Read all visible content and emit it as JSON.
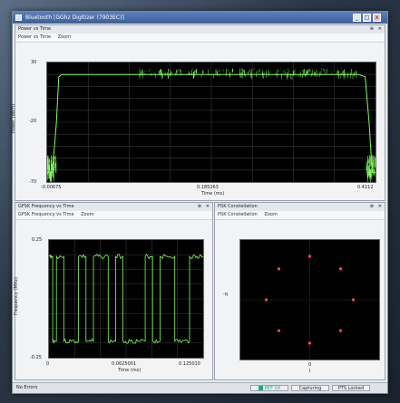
{
  "window": {
    "title": "Bluetooth [GGhz Digitizer (7903EC)]",
    "min": "_",
    "max": "□",
    "close": "x"
  },
  "power_panel": {
    "title": "Power vs Time",
    "tabs": [
      "Power vs Time",
      "Zoom"
    ],
    "ylabel": "Power (dBm)",
    "xlabel": "Time (ms)",
    "yticks": [
      "30",
      "-20",
      "-70"
    ],
    "xticks": [
      "-0.00675",
      "0.185263",
      "0.4112"
    ]
  },
  "freq_panel": {
    "title": "GFSK Frequency vs Time",
    "tabs": [
      "GFSK Frequency vs Time",
      "Zoom"
    ],
    "ylabel": "Frequency (MHz)",
    "xlabel": "Time (ms)",
    "yticks": [
      "0.25",
      "-0.25"
    ],
    "xticks": [
      "0",
      "0.0625001",
      "0.125010"
    ]
  },
  "const_panel": {
    "title": "PSK Constellation",
    "tabs": [
      "PSK Constellation",
      "Zoom"
    ],
    "left_label": "-q",
    "bottom_label": "0",
    "bottom_sub": "I"
  },
  "status": {
    "left": "No Errors",
    "ref": "REF CK",
    "capture": "Capturing",
    "pts": "PTS Locked"
  },
  "chart_data": [
    {
      "type": "line",
      "title": "Power vs Time",
      "xlabel": "Time (ms)",
      "ylabel": "Power (dBm)",
      "xlim": [
        -0.00675,
        0.4112
      ],
      "ylim": [
        -70,
        30
      ],
      "series": [
        {
          "x": [
            -0.00675,
            0.0,
            0.005,
            0.008,
            0.012,
            0.2,
            0.39,
            0.398,
            0.403,
            0.407,
            0.4112
          ],
          "y": [
            -62,
            -62,
            -20,
            18,
            20,
            20,
            20,
            18,
            -20,
            -62,
            -62
          ]
        }
      ]
    },
    {
      "type": "line",
      "title": "GFSK Frequency vs Time",
      "xlabel": "Time (ms)",
      "ylabel": "Frequency (MHz)",
      "xlim": [
        0,
        0.12501
      ],
      "ylim": [
        -0.25,
        0.25
      ],
      "series": [
        {
          "x": [
            0,
            0.003,
            0.006,
            0.012,
            0.018,
            0.024,
            0.03,
            0.036,
            0.042,
            0.048,
            0.054,
            0.06,
            0.066,
            0.072,
            0.078,
            0.084,
            0.09,
            0.096,
            0.102,
            0.108,
            0.114,
            0.12,
            0.12501
          ],
          "y": [
            0.18,
            -0.18,
            0.18,
            -0.18,
            -0.18,
            0.18,
            -0.18,
            0.18,
            0.18,
            -0.18,
            0.18,
            -0.18,
            -0.18,
            -0.18,
            0.18,
            -0.18,
            0.18,
            0.18,
            -0.18,
            -0.18,
            0.18,
            0.18,
            0.18
          ]
        }
      ]
    },
    {
      "type": "scatter",
      "title": "PSK Constellation",
      "points": [
        {
          "x": 0,
          "y": 1
        },
        {
          "x": 0.71,
          "y": 0.71
        },
        {
          "x": 1,
          "y": 0
        },
        {
          "x": 0.71,
          "y": -0.71
        },
        {
          "x": 0,
          "y": -1
        },
        {
          "x": -0.71,
          "y": -0.71
        },
        {
          "x": -1,
          "y": 0
        },
        {
          "x": -0.71,
          "y": 0.71
        }
      ]
    }
  ]
}
